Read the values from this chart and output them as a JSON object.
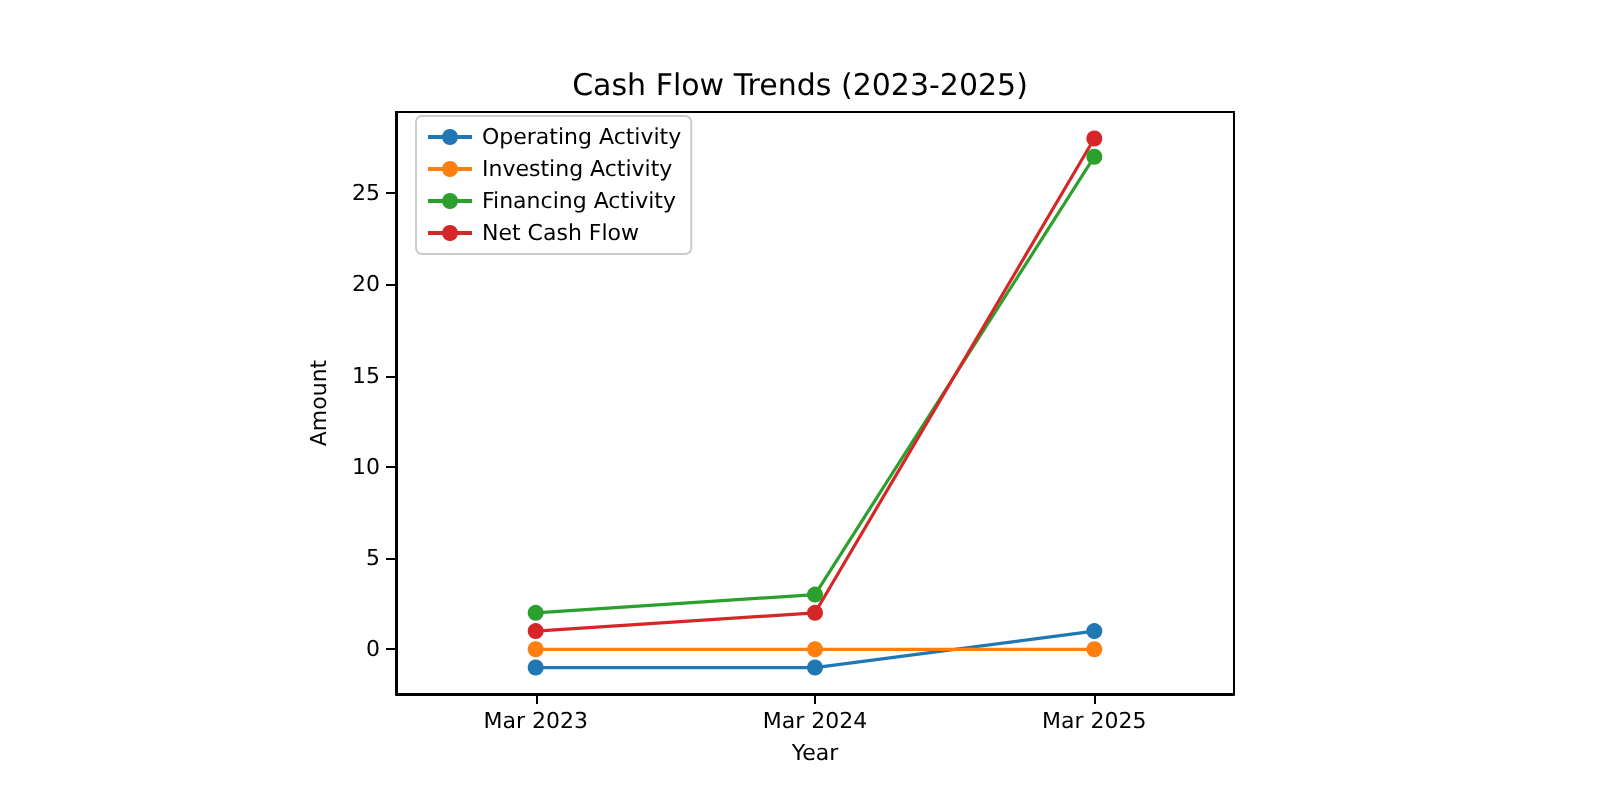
{
  "chart_data": {
    "type": "line",
    "title": "Cash Flow Trends (2023-2025)",
    "xlabel": "Year",
    "ylabel": "Amount",
    "categories": [
      "Mar 2023",
      "Mar 2024",
      "Mar 2025"
    ],
    "series": [
      {
        "name": "Operating Activity",
        "color": "#1f77b4",
        "values": [
          -1,
          -1,
          1
        ]
      },
      {
        "name": "Investing Activity",
        "color": "#ff7f0e",
        "values": [
          0,
          0,
          0
        ]
      },
      {
        "name": "Financing Activity",
        "color": "#2ca02c",
        "values": [
          2,
          3,
          27
        ]
      },
      {
        "name": "Net Cash Flow",
        "color": "#d62728",
        "values": [
          1,
          2,
          28
        ]
      }
    ],
    "ylim": [
      -2.45,
      29.45
    ],
    "yticks": [
      0,
      5,
      10,
      15,
      20,
      25
    ],
    "grid": false,
    "legend": "top left",
    "marker": "circle",
    "line_style": "solid"
  }
}
